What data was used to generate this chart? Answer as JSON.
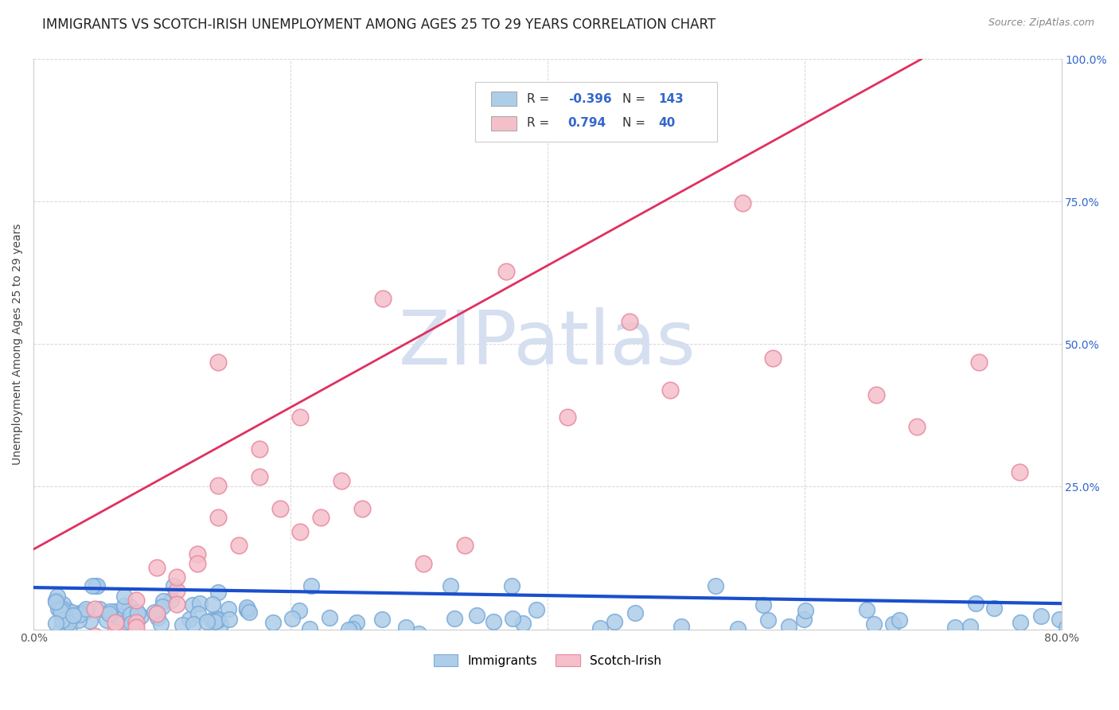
{
  "title": "IMMIGRANTS VS SCOTCH-IRISH UNEMPLOYMENT AMONG AGES 25 TO 29 YEARS CORRELATION CHART",
  "source": "Source: ZipAtlas.com",
  "ylabel": "Unemployment Among Ages 25 to 29 years",
  "xlim": [
    0.0,
    0.8
  ],
  "ylim": [
    0.0,
    1.0
  ],
  "xtick_positions": [
    0.0,
    0.2,
    0.4,
    0.6,
    0.8
  ],
  "xticklabels": [
    "0.0%",
    "",
    "",
    "",
    "80.0%"
  ],
  "ytick_positions": [
    0.0,
    0.25,
    0.5,
    0.75,
    1.0
  ],
  "yticklabels": [
    "",
    "25.0%",
    "50.0%",
    "75.0%",
    "100.0%"
  ],
  "immigrants_R": -0.396,
  "immigrants_N": 143,
  "scotch_irish_R": 0.794,
  "scotch_irish_N": 40,
  "immigrants_color": "#aecde8",
  "immigrants_edge_color": "#7aabda",
  "immigrants_line_color": "#1a4fcc",
  "scotch_irish_color": "#f5bfca",
  "scotch_irish_edge_color": "#e88aa0",
  "scotch_irish_line_color": "#e03060",
  "background_color": "#ffffff",
  "grid_color": "#bbbbbb",
  "watermark_color": "#d5dff0",
  "title_fontsize": 12,
  "axis_label_fontsize": 10,
  "tick_fontsize": 10,
  "legend_fontsize": 11
}
